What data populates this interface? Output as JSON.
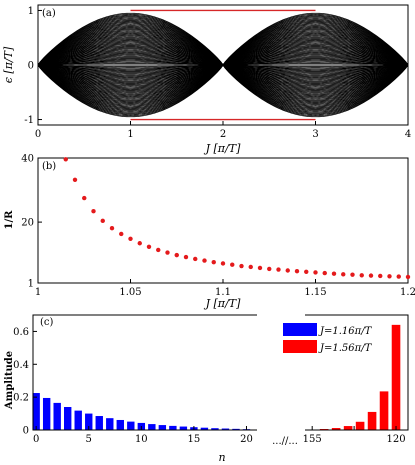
{
  "chart_data": [
    {
      "type": "line",
      "panel_label": "(a)",
      "xlabel": "J [π/T]",
      "ylabel": "ϵ [π/T]",
      "xlim": [
        0,
        4
      ],
      "ylim": [
        -1.1,
        1.1
      ],
      "xticks": [
        "0",
        "1",
        "2",
        "3",
        "4"
      ],
      "yticks": [
        "-1",
        "0",
        "1"
      ],
      "bulk_band_count": 60,
      "colors": {
        "bulk": "#000000",
        "edge": "#d62728"
      },
      "edge_state_energy": [
        1,
        -1
      ],
      "edge_state_x_ranges": [
        [
          1,
          3
        ]
      ]
    },
    {
      "type": "scatter",
      "panel_label": "(b)",
      "xlabel": "J [π/T]",
      "ylabel": "1/R",
      "xlim": [
        1,
        1.2
      ],
      "ylim": [
        1,
        40
      ],
      "xticks": [
        "1",
        "1.05",
        "1.1",
        "1.15",
        "1.2"
      ],
      "yticks": [
        "1",
        "20",
        "40"
      ],
      "color": "#e41a1c",
      "x": [
        1.015,
        1.02,
        1.025,
        1.03,
        1.035,
        1.04,
        1.045,
        1.05,
        1.055,
        1.06,
        1.065,
        1.07,
        1.075,
        1.08,
        1.085,
        1.09,
        1.095,
        1.1,
        1.105,
        1.11,
        1.115,
        1.12,
        1.125,
        1.13,
        1.135,
        1.14,
        1.145,
        1.15,
        1.155,
        1.16,
        1.165,
        1.17,
        1.175,
        1.18,
        1.185,
        1.19,
        1.195,
        1.2
      ],
      "y": [
        39.6,
        33.2,
        27.5,
        23.4,
        20.4,
        18.1,
        16.3,
        14.8,
        13.4,
        12.3,
        11.3,
        10.5,
        9.7,
        9.1,
        8.5,
        8.0,
        7.5,
        7.1,
        6.7,
        6.3,
        6.0,
        5.7,
        5.4,
        5.2,
        4.9,
        4.7,
        4.5,
        4.3,
        4.1,
        3.9,
        3.7,
        3.6,
        3.4,
        3.3,
        3.2,
        3.1,
        3.0,
        2.9
      ]
    },
    {
      "type": "bar",
      "panel_label": "(c)",
      "xlabel": "n",
      "ylabel": "Amplitude",
      "ylim": [
        0,
        0.7
      ],
      "yticks": [
        "0",
        "0.2",
        "0.4",
        "0.6"
      ],
      "xticks_left": [
        "0",
        "5",
        "10",
        "15",
        "20"
      ],
      "xticks_right": [
        "155",
        "",
        "120"
      ],
      "break_label": "...//...",
      "series": [
        {
          "name": "J=1.16π/T",
          "color": "#0000ff",
          "n": [
            0,
            1,
            2,
            3,
            4,
            5,
            6,
            7,
            8,
            9,
            10,
            11,
            12,
            13,
            14,
            15,
            16,
            17,
            18,
            19,
            20
          ],
          "values": [
            0.225,
            0.195,
            0.165,
            0.14,
            0.118,
            0.1,
            0.085,
            0.072,
            0.061,
            0.051,
            0.043,
            0.036,
            0.03,
            0.025,
            0.021,
            0.017,
            0.014,
            0.011,
            0.009,
            0.007,
            0.005
          ]
        },
        {
          "name": "J=1.56π/T",
          "color": "#ff0000",
          "n": [
            113,
            114,
            115,
            116,
            117,
            118,
            119,
            120
          ],
          "values": [
            0.003,
            0.006,
            0.012,
            0.024,
            0.05,
            0.11,
            0.235,
            0.64
          ]
        }
      ]
    }
  ]
}
